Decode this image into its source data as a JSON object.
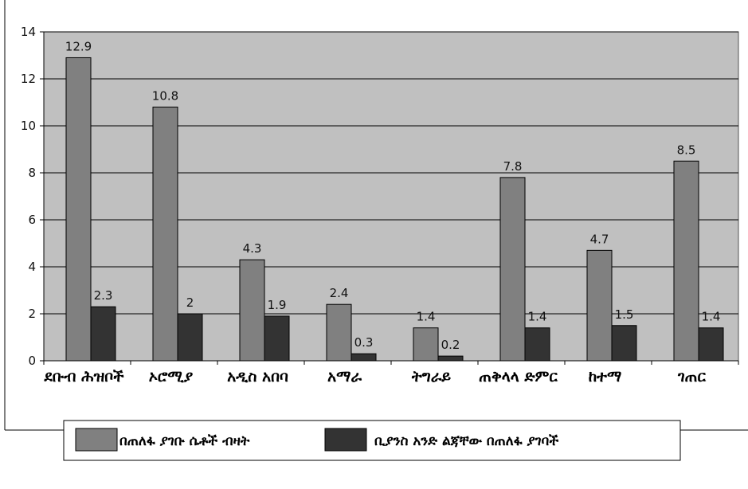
{
  "chart_data": {
    "type": "bar",
    "categories": [
      "ደቡብ ሕዝቦች",
      "ኦሮሚያ",
      "አዲስ አበባ",
      "አማራ",
      "ትግራይ",
      "ጠቅላላ ድምር",
      "ከተማ",
      "ገጠር"
    ],
    "series": [
      {
        "name": "በጠለፋ ያገቡ ሴቶች ብዛት",
        "values": [
          12.9,
          10.8,
          4.3,
          2.4,
          1.4,
          7.8,
          4.7,
          8.5
        ],
        "color": "#808080"
      },
      {
        "name": "ቢያንስ አንድ ልጃቸው በጠለፋ ያገባች",
        "values": [
          2.3,
          2,
          1.9,
          0.3,
          0.2,
          1.4,
          1.5,
          1.4
        ],
        "color": "#333333"
      }
    ],
    "ylim": [
      0,
      14
    ],
    "yticks": [
      0,
      2,
      4,
      6,
      8,
      10,
      12,
      14
    ],
    "grid": true,
    "legend_position": "bottom",
    "plot_background": "#c0c0c0",
    "title": "",
    "xlabel": "",
    "ylabel": ""
  }
}
